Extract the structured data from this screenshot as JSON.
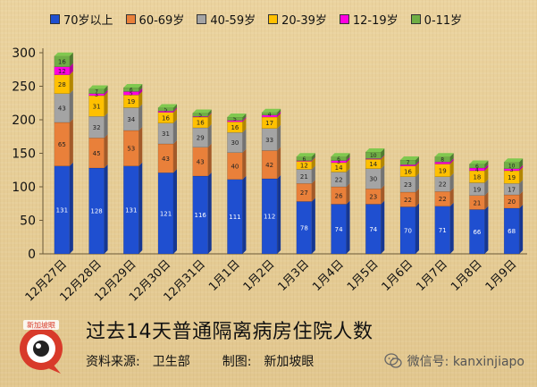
{
  "legend": [
    {
      "name": "70岁以上",
      "color": "#1f4fd0"
    },
    {
      "name": "60-69岁",
      "color": "#e9803a"
    },
    {
      "name": "40-59岁",
      "color": "#a4a4a4"
    },
    {
      "name": "20-39岁",
      "color": "#ffc000"
    },
    {
      "name": "12-19岁",
      "color": "#ff00e0"
    },
    {
      "name": "0-11岁",
      "color": "#6fae45"
    }
  ],
  "title": "过去14天普通隔离病房住院人数",
  "source": "资料来源:　卫生部",
  "maker": "制图:　新加坡眼",
  "watermark": "微信号: kanxinjiapo",
  "logo_text": "新加坡眼",
  "chart_data": {
    "type": "bar",
    "stacked": true,
    "ylim": [
      0,
      300
    ],
    "yticks": [
      0,
      50,
      100,
      150,
      200,
      250,
      300
    ],
    "categories": [
      "12月27日",
      "12月28日",
      "12月29日",
      "12月30日",
      "12月31日",
      "1月1日",
      "1月2日",
      "1月3日",
      "1月4日",
      "1月5日",
      "1月6日",
      "1月7日",
      "1月8日",
      "1月9日"
    ],
    "series": [
      {
        "name": "70岁以上",
        "values": [
          131,
          128,
          131,
          121,
          116,
          111,
          112,
          78,
          74,
          74,
          70,
          71,
          66,
          68
        ]
      },
      {
        "name": "60-69岁",
        "values": [
          65,
          45,
          53,
          43,
          43,
          40,
          42,
          27,
          26,
          23,
          22,
          22,
          21,
          20
        ]
      },
      {
        "name": "40-59岁",
        "values": [
          43,
          32,
          34,
          31,
          29,
          30,
          33,
          21,
          22,
          30,
          23,
          22,
          19,
          17
        ]
      },
      {
        "name": "20-39岁",
        "values": [
          28,
          31,
          19,
          16,
          16,
          16,
          17,
          12,
          14,
          14,
          16,
          19,
          18,
          19
        ]
      },
      {
        "name": "12-19岁",
        "values": [
          12,
          3,
          5,
          2,
          1,
          2,
          3,
          1,
          3,
          1,
          2,
          3,
          4,
          3
        ]
      },
      {
        "name": "0-11岁",
        "values": [
          16,
          7,
          6,
          5,
          5,
          5,
          4,
          6,
          6,
          10,
          7,
          8,
          6,
          10
        ]
      }
    ],
    "value_labels": [
      [
        "131",
        "65",
        "43",
        "28",
        "12",
        "16"
      ],
      [
        "128",
        "45",
        "32",
        "31",
        "3",
        "7"
      ],
      [
        "131",
        "53",
        "34",
        "19",
        "5",
        "6"
      ],
      [
        "121",
        "43",
        "31",
        "16",
        "",
        "5"
      ],
      [
        "116",
        "43",
        "29",
        "16",
        "",
        "5"
      ],
      [
        "111",
        "40",
        "30",
        "16",
        "",
        "5"
      ],
      [
        "112",
        "42",
        "33",
        "17",
        "",
        "4"
      ],
      [
        "78",
        "27",
        "21",
        "12",
        "",
        "6"
      ],
      [
        "74",
        "26",
        "22",
        "14",
        "3",
        "6"
      ],
      [
        "74",
        "23",
        "30",
        "14",
        "",
        "10"
      ],
      [
        "70",
        "22",
        "23",
        "16",
        "",
        "7"
      ],
      [
        "71",
        "22",
        "22",
        "19",
        "",
        "8"
      ],
      [
        "66",
        "21",
        "19",
        "18",
        "4",
        "6"
      ],
      [
        "68",
        "20",
        "17",
        "19",
        "3",
        "10"
      ]
    ]
  }
}
